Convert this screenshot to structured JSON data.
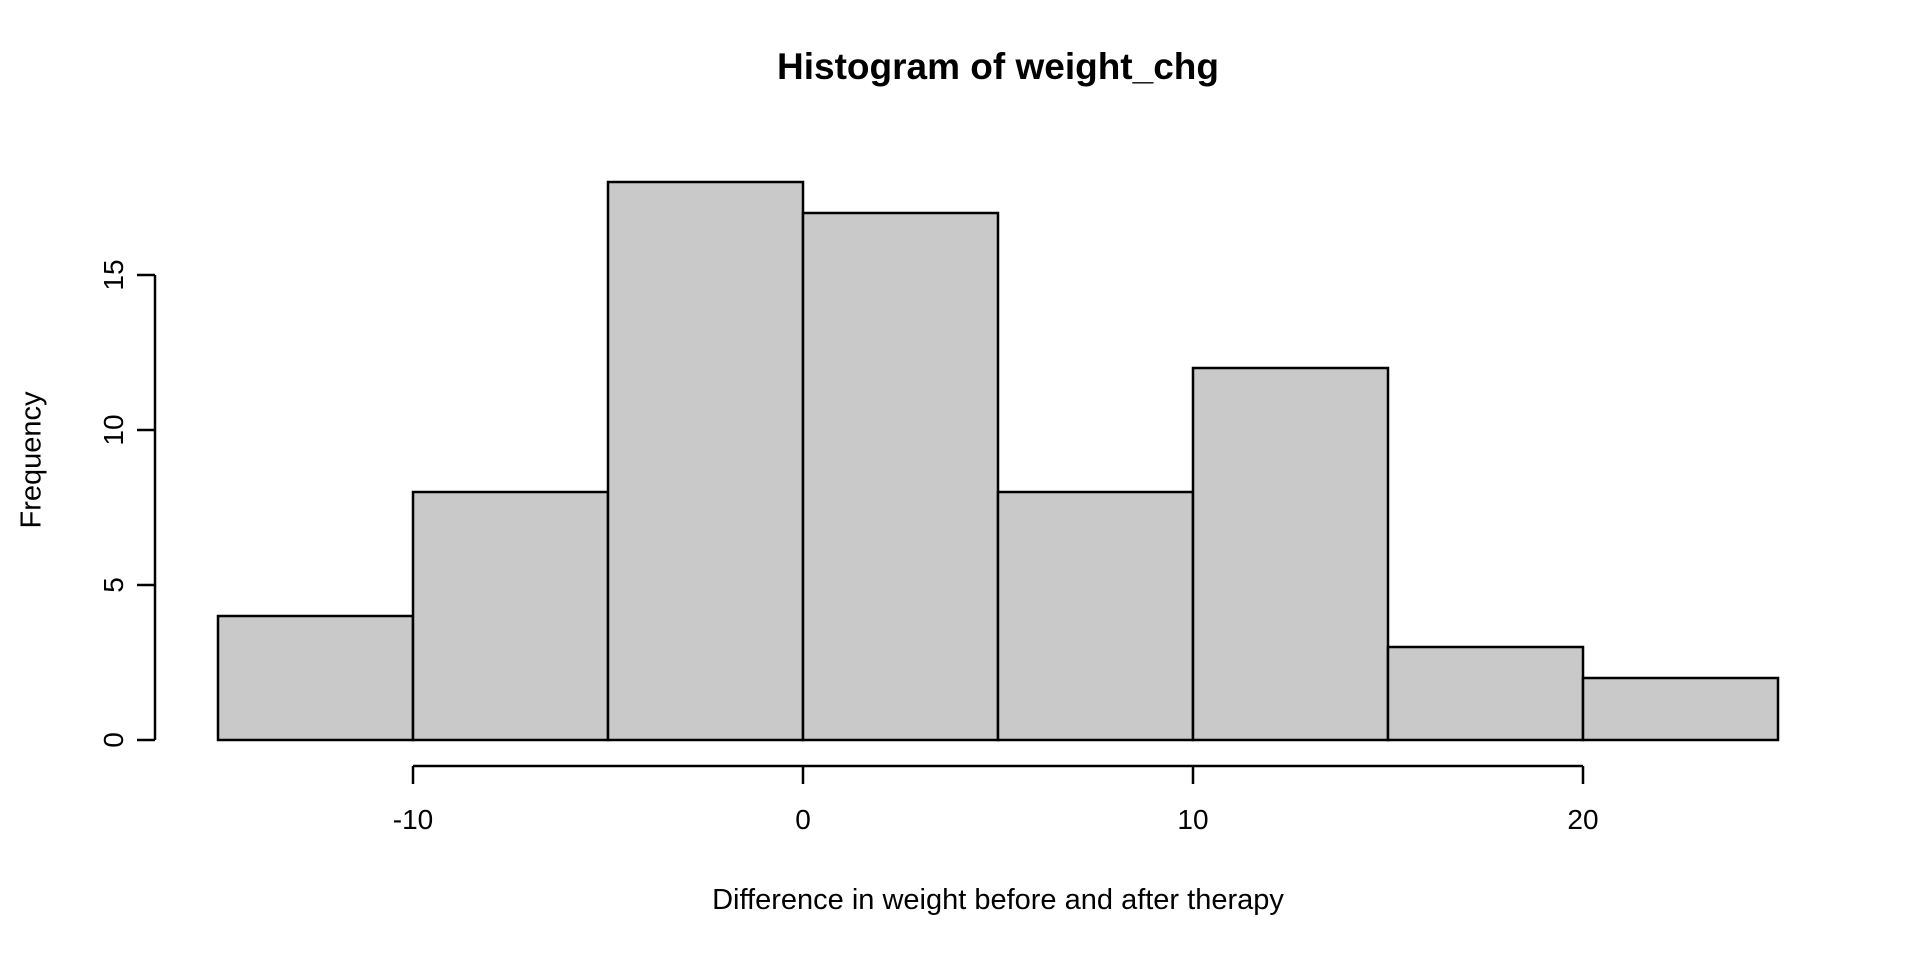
{
  "chart_data": {
    "type": "bar",
    "subtype": "histogram",
    "title": "Histogram of weight_chg",
    "xlabel": "Difference in weight before and after therapy",
    "ylabel": "Frequency",
    "bin_edges": [
      -15,
      -10,
      -5,
      0,
      5,
      10,
      15,
      20,
      25
    ],
    "counts": [
      4,
      8,
      18,
      17,
      8,
      12,
      3,
      2
    ],
    "x_ticks": [
      -10,
      0,
      10,
      20
    ],
    "y_ticks": [
      0,
      5,
      10,
      15
    ],
    "xlim": [
      -15,
      25
    ],
    "ylim": [
      0,
      18
    ],
    "grid": "off",
    "legend": "none",
    "colors": {
      "bar_fill": "#c9c9c9",
      "bar_stroke": "#000000",
      "axis": "#000000",
      "text": "#000000",
      "background": "#ffffff"
    }
  }
}
